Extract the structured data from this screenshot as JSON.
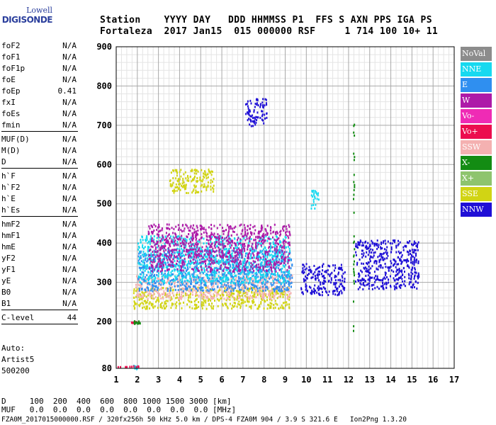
{
  "logo": {
    "line1": "Lowell",
    "line2": "DIGISONDE"
  },
  "header": {
    "line1": "Station    YYYY DAY   DDD HHMMSS P1  FFS S AXN PPS IGA PS",
    "line2": "Fortaleza  2017 Jan15  015 000000 RSF     1 714 100 10+ 11"
  },
  "params": [
    [
      {
        "name": "foF2",
        "value": "N/A"
      },
      {
        "name": "foF1",
        "value": "N/A"
      },
      {
        "name": "foF1p",
        "value": "N/A"
      },
      {
        "name": "foE",
        "value": "N/A"
      },
      {
        "name": "foEp",
        "value": "0.41"
      },
      {
        "name": "fxI",
        "value": "N/A"
      },
      {
        "name": "foEs",
        "value": "N/A"
      },
      {
        "name": "fmin",
        "value": "N/A"
      }
    ],
    [
      {
        "name": "MUF(D)",
        "value": "N/A"
      },
      {
        "name": "M(D)",
        "value": "N/A"
      },
      {
        "name": "D",
        "value": "N/A"
      }
    ],
    [
      {
        "name": "h`F",
        "value": "N/A"
      },
      {
        "name": "h`F2",
        "value": "N/A"
      },
      {
        "name": "h`E",
        "value": "N/A"
      },
      {
        "name": "h`Es",
        "value": "N/A"
      }
    ],
    [
      {
        "name": "hmF2",
        "value": "N/A"
      },
      {
        "name": "hmF1",
        "value": "N/A"
      },
      {
        "name": "hmE",
        "value": "N/A"
      },
      {
        "name": "yF2",
        "value": "N/A"
      },
      {
        "name": "yF1",
        "value": "N/A"
      },
      {
        "name": "yE",
        "value": "N/A"
      },
      {
        "name": "B0",
        "value": "N/A"
      },
      {
        "name": "B1",
        "value": "N/A"
      }
    ],
    [
      {
        "name": "C-level",
        "value": "44"
      }
    ]
  ],
  "auto": {
    "line1": "Auto:",
    "line2": "Artist5",
    "line3": "500200"
  },
  "legend": [
    {
      "label": "NoVal",
      "color": "#8c8c8c"
    },
    {
      "label": "NNE",
      "color": "#17d9f0"
    },
    {
      "label": "E",
      "color": "#2f8ff0"
    },
    {
      "label": "W",
      "color": "#ad1aa8"
    },
    {
      "label": "Vo-",
      "color": "#ef2bb5"
    },
    {
      "label": "Vo+",
      "color": "#ec0d4f"
    },
    {
      "label": "SSW",
      "color": "#f4b1b1"
    },
    {
      "label": "X-",
      "color": "#138c13"
    },
    {
      "label": "X+",
      "color": "#8ec46e"
    },
    {
      "label": "SSE",
      "color": "#d1d414"
    },
    {
      "label": "NNW",
      "color": "#1f0fd6"
    }
  ],
  "footer": {
    "line1": "D     100  200  400  600  800 1000 1500 3000 [km]",
    "line2": "MUF   0.0  0.0  0.0  0.0  0.0  0.0  0.0  0.0 [MHz]",
    "line3": "FZA0M_2017015000000.RSF / 320fx256h 50 kHz 5.0 km / DPS-4 FZA0M 904 / 3.9 S 321.6 E   Ion2Png 1.3.20"
  },
  "chart_data": {
    "type": "scatter",
    "title": "",
    "xlabel": "",
    "ylabel": "",
    "xlim": [
      1,
      17
    ],
    "ylim": [
      80,
      900
    ],
    "xticks": [
      1,
      2,
      3,
      4,
      5,
      6,
      7,
      8,
      9,
      10,
      11,
      12,
      13,
      14,
      15,
      16,
      17
    ],
    "yticks": [
      80,
      200,
      300,
      400,
      500,
      600,
      700,
      800,
      900
    ],
    "grid": true,
    "legend_position": "right",
    "clusters": [
      {
        "x": [
          1.8,
          2.0
        ],
        "y": [
          80,
          90
        ],
        "series": "NNE"
      },
      {
        "x": [
          1.0,
          2.1
        ],
        "y": [
          85,
          88
        ],
        "series": "Vo+"
      },
      {
        "x": [
          1.5,
          2.1
        ],
        "y": [
          198,
          202
        ],
        "series": "Vo+"
      },
      {
        "x": [
          1.8,
          2.1
        ],
        "y": [
          196,
          204
        ],
        "series": "X-"
      },
      {
        "x": [
          1.8,
          9.2
        ],
        "y": [
          235,
          290
        ],
        "series": "SSE"
      },
      {
        "x": [
          1.9,
          9.3
        ],
        "y": [
          260,
          320
        ],
        "series": "SSW"
      },
      {
        "x": [
          2.0,
          9.3
        ],
        "y": [
          280,
          385
        ],
        "series": "E"
      },
      {
        "x": [
          2.0,
          9.2
        ],
        "y": [
          300,
          420
        ],
        "series": "NNE"
      },
      {
        "x": [
          2.5,
          9.2
        ],
        "y": [
          330,
          450
        ],
        "series": "W"
      },
      {
        "x": [
          3.5,
          5.6
        ],
        "y": [
          530,
          590
        ],
        "series": "SSE"
      },
      {
        "x": [
          9.7,
          11.8
        ],
        "y": [
          270,
          350
        ],
        "series": "NNW"
      },
      {
        "x": [
          10.2,
          10.6
        ],
        "y": [
          490,
          540
        ],
        "series": "NNE"
      },
      {
        "x": [
          12.3,
          15.3
        ],
        "y": [
          285,
          410
        ],
        "series": "NNW"
      },
      {
        "x": [
          12.2,
          12.25
        ],
        "y": [
          170,
          710
        ],
        "series": "X-"
      },
      {
        "x": [
          7.1,
          8.1
        ],
        "y": [
          700,
          770
        ],
        "series": "NNW"
      }
    ]
  }
}
